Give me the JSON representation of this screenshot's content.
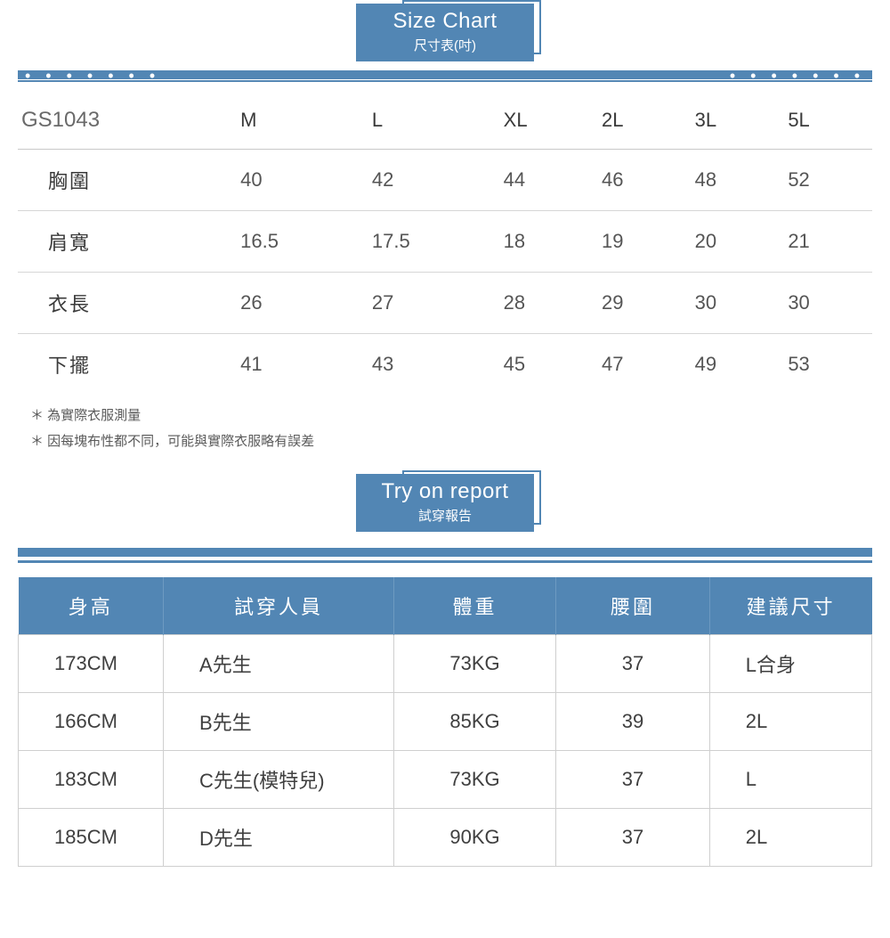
{
  "colors": {
    "brand": "#5286b4",
    "text": "#424242",
    "muted": "#6a6a6a",
    "border": "#d0d0d0",
    "bg": "#ffffff"
  },
  "size_chart": {
    "title_en": "Size Chart",
    "title_zh": "尺寸表(吋)",
    "product_code": "GS1043",
    "sizes": [
      "M",
      "L",
      "XL",
      "2L",
      "3L",
      "5L"
    ],
    "rows": [
      {
        "label": "胸圍",
        "values": [
          "40",
          "42",
          "44",
          "46",
          "48",
          "52"
        ]
      },
      {
        "label": "肩寬",
        "values": [
          "16.5",
          "17.5",
          "18",
          "19",
          "20",
          "21"
        ]
      },
      {
        "label": "衣長",
        "values": [
          "26",
          "27",
          "28",
          "29",
          "30",
          "30"
        ]
      },
      {
        "label": "下擺",
        "values": [
          "41",
          "43",
          "45",
          "47",
          "49",
          "53"
        ]
      }
    ],
    "notes": [
      "＊ 為實際衣服測量",
      "＊ 因每塊布性都不同，可能與實際衣服略有誤差"
    ]
  },
  "try_on": {
    "title_en": "Try on report",
    "title_zh": "試穿報告",
    "columns": [
      "身高",
      "試穿人員",
      "體重",
      "腰圍",
      "建議尺寸"
    ],
    "rows": [
      {
        "height": "173CM",
        "tester": "A先生",
        "weight": "73KG",
        "waist": "37",
        "size": "L合身"
      },
      {
        "height": "166CM",
        "tester": "B先生",
        "weight": "85KG",
        "waist": "39",
        "size": "2L"
      },
      {
        "height": "183CM",
        "tester": "C先生(模特兒)",
        "weight": "73KG",
        "waist": "37",
        "size": "L"
      },
      {
        "height": "185CM",
        "tester": "D先生",
        "weight": "90KG",
        "waist": "37",
        "size": "2L"
      }
    ]
  }
}
